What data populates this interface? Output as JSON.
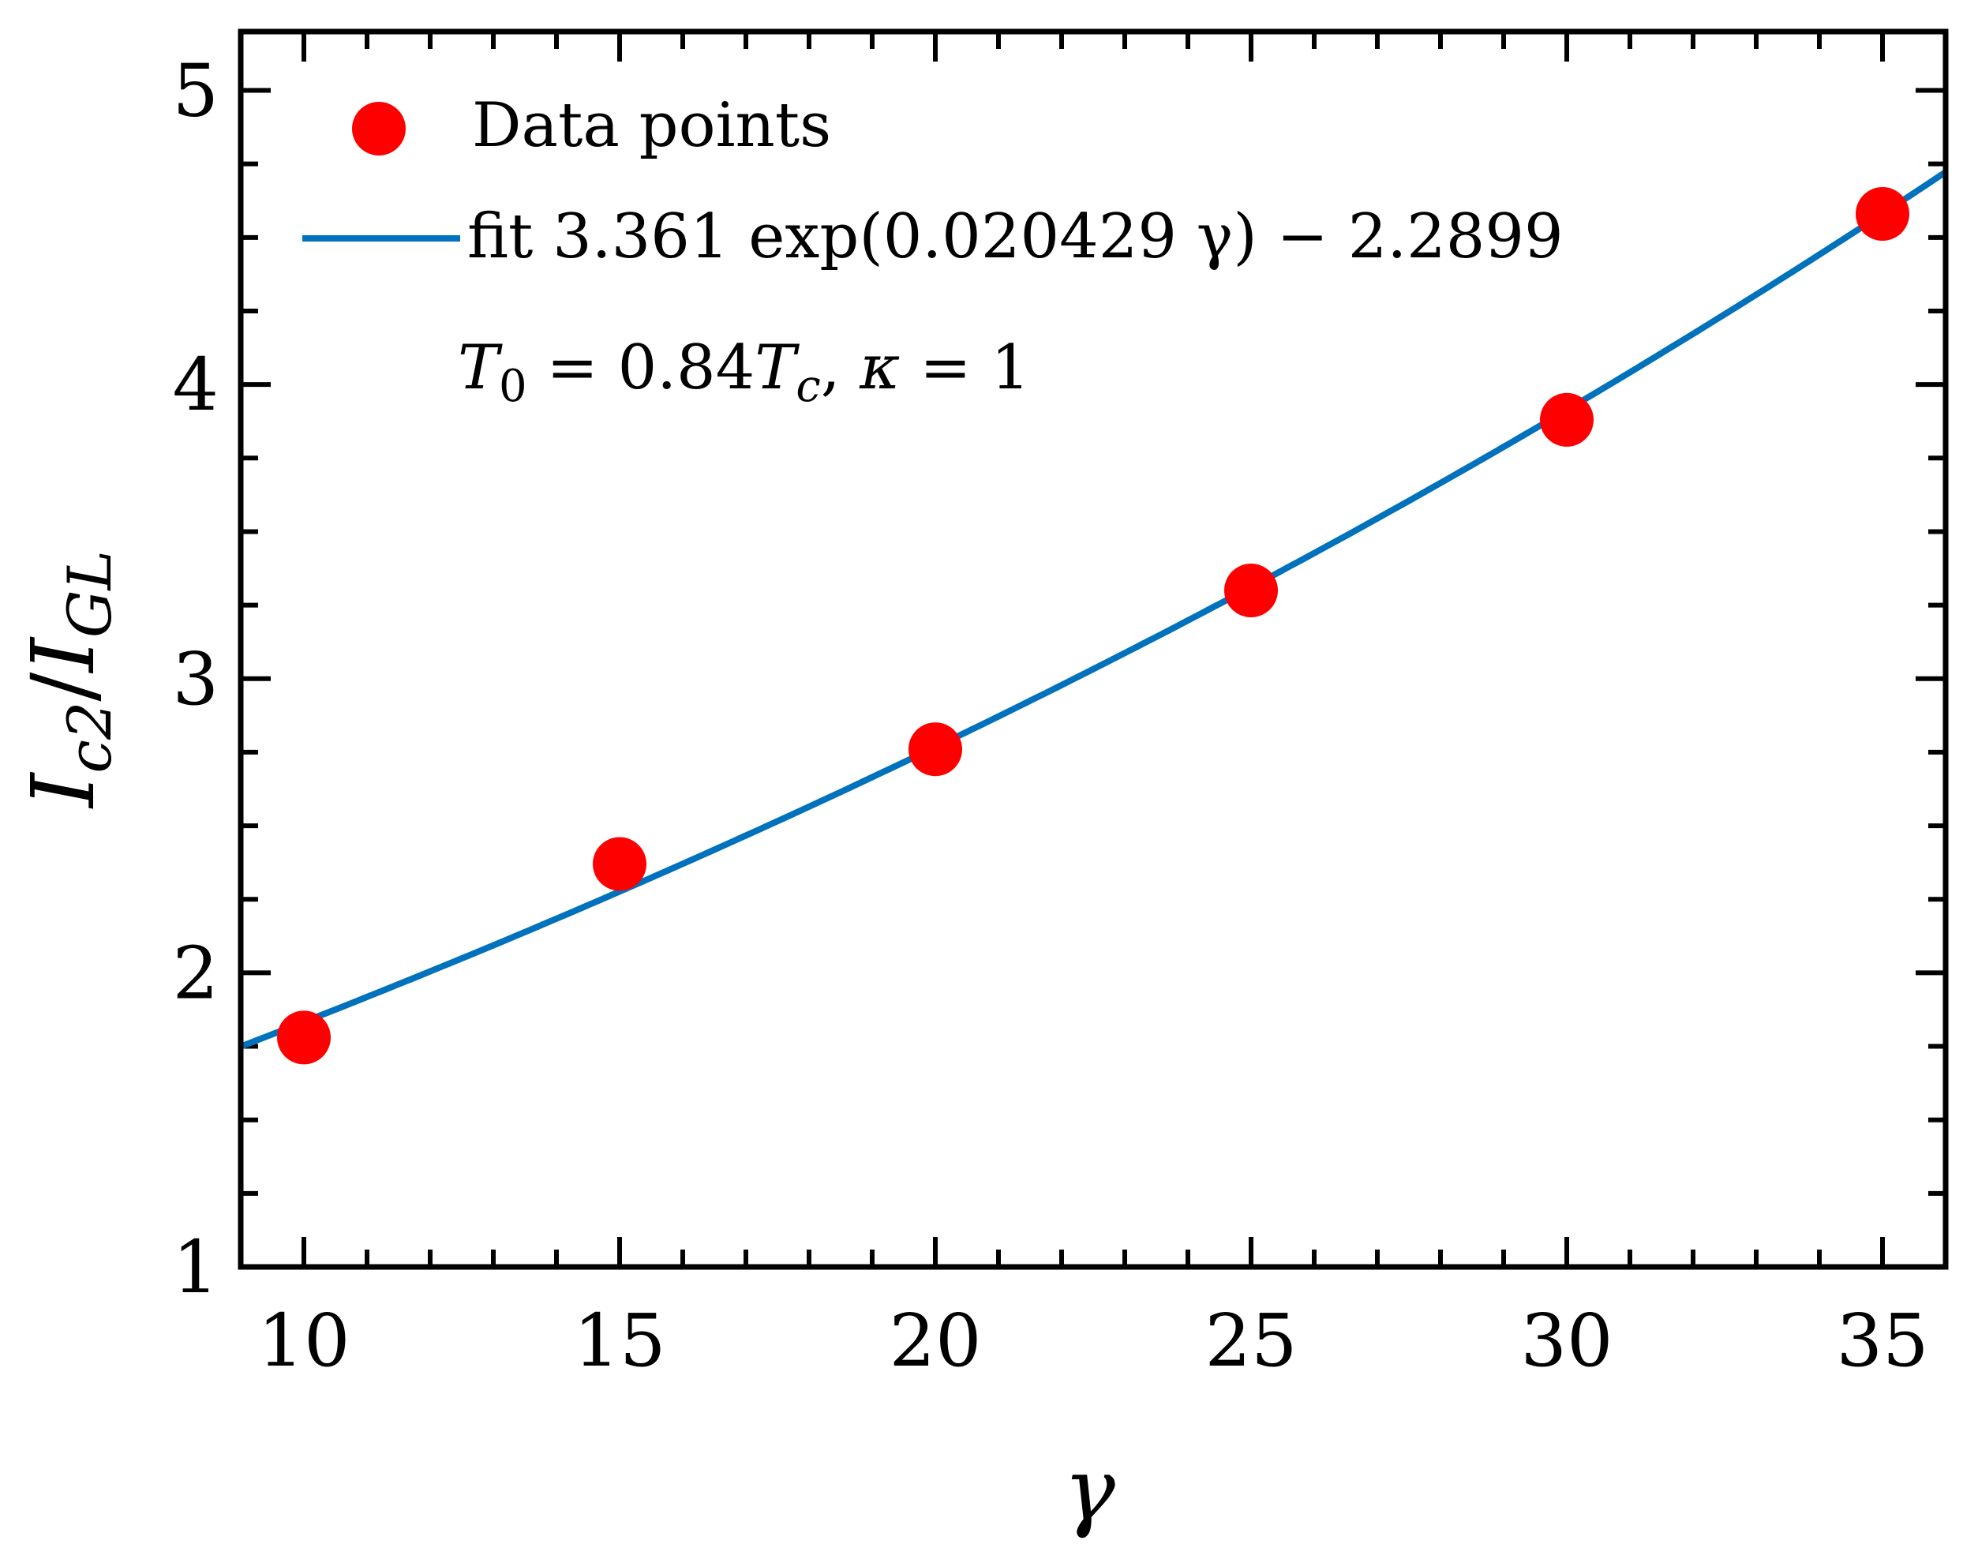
{
  "chart_data": {
    "type": "scatter",
    "title": "",
    "xlabel": "γ",
    "ylabel": {
      "main": "I",
      "sub1": "c2",
      "slash": "/",
      "main2": "I",
      "sub2": "GL"
    },
    "xlim": [
      9,
      36
    ],
    "ylim": [
      1,
      5.2
    ],
    "x_ticks": [
      10,
      15,
      20,
      25,
      30,
      35
    ],
    "x_tick_labels": [
      "10",
      "15",
      "20",
      "25",
      "30",
      "35"
    ],
    "y_ticks": [
      1,
      2,
      3,
      4,
      5
    ],
    "y_tick_labels": [
      "1",
      "2",
      "3",
      "4",
      "5"
    ],
    "series": [
      {
        "name": "Data points",
        "kind": "scatter",
        "color": "#ff0000",
        "x": [
          10,
          15,
          20,
          25,
          30,
          35
        ],
        "y": [
          1.78,
          2.37,
          2.76,
          3.3,
          3.88,
          4.58
        ]
      },
      {
        "name": "fit 3.361 exp(0.020429 γ) − 2.2899",
        "kind": "line",
        "color": "#0072bd",
        "formula": {
          "a": 3.361,
          "b": 0.020429,
          "c": -2.2899
        }
      }
    ],
    "legend": {
      "position": "top-left",
      "entries": [
        {
          "label": "Data points"
        },
        {
          "label": "fit 3.361 exp(0.020429 γ) − 2.2899"
        }
      ]
    },
    "annotation": {
      "text": "T₀ = 0.84T꜀,  κ = 1",
      "t0": "T",
      "t0_sub": "0",
      "eq1": " = 0.84",
      "tc": "T",
      "tc_sub": "c",
      "sep": ",  ",
      "kappa": "κ",
      "eq2": " = 1"
    },
    "grid": false
  }
}
